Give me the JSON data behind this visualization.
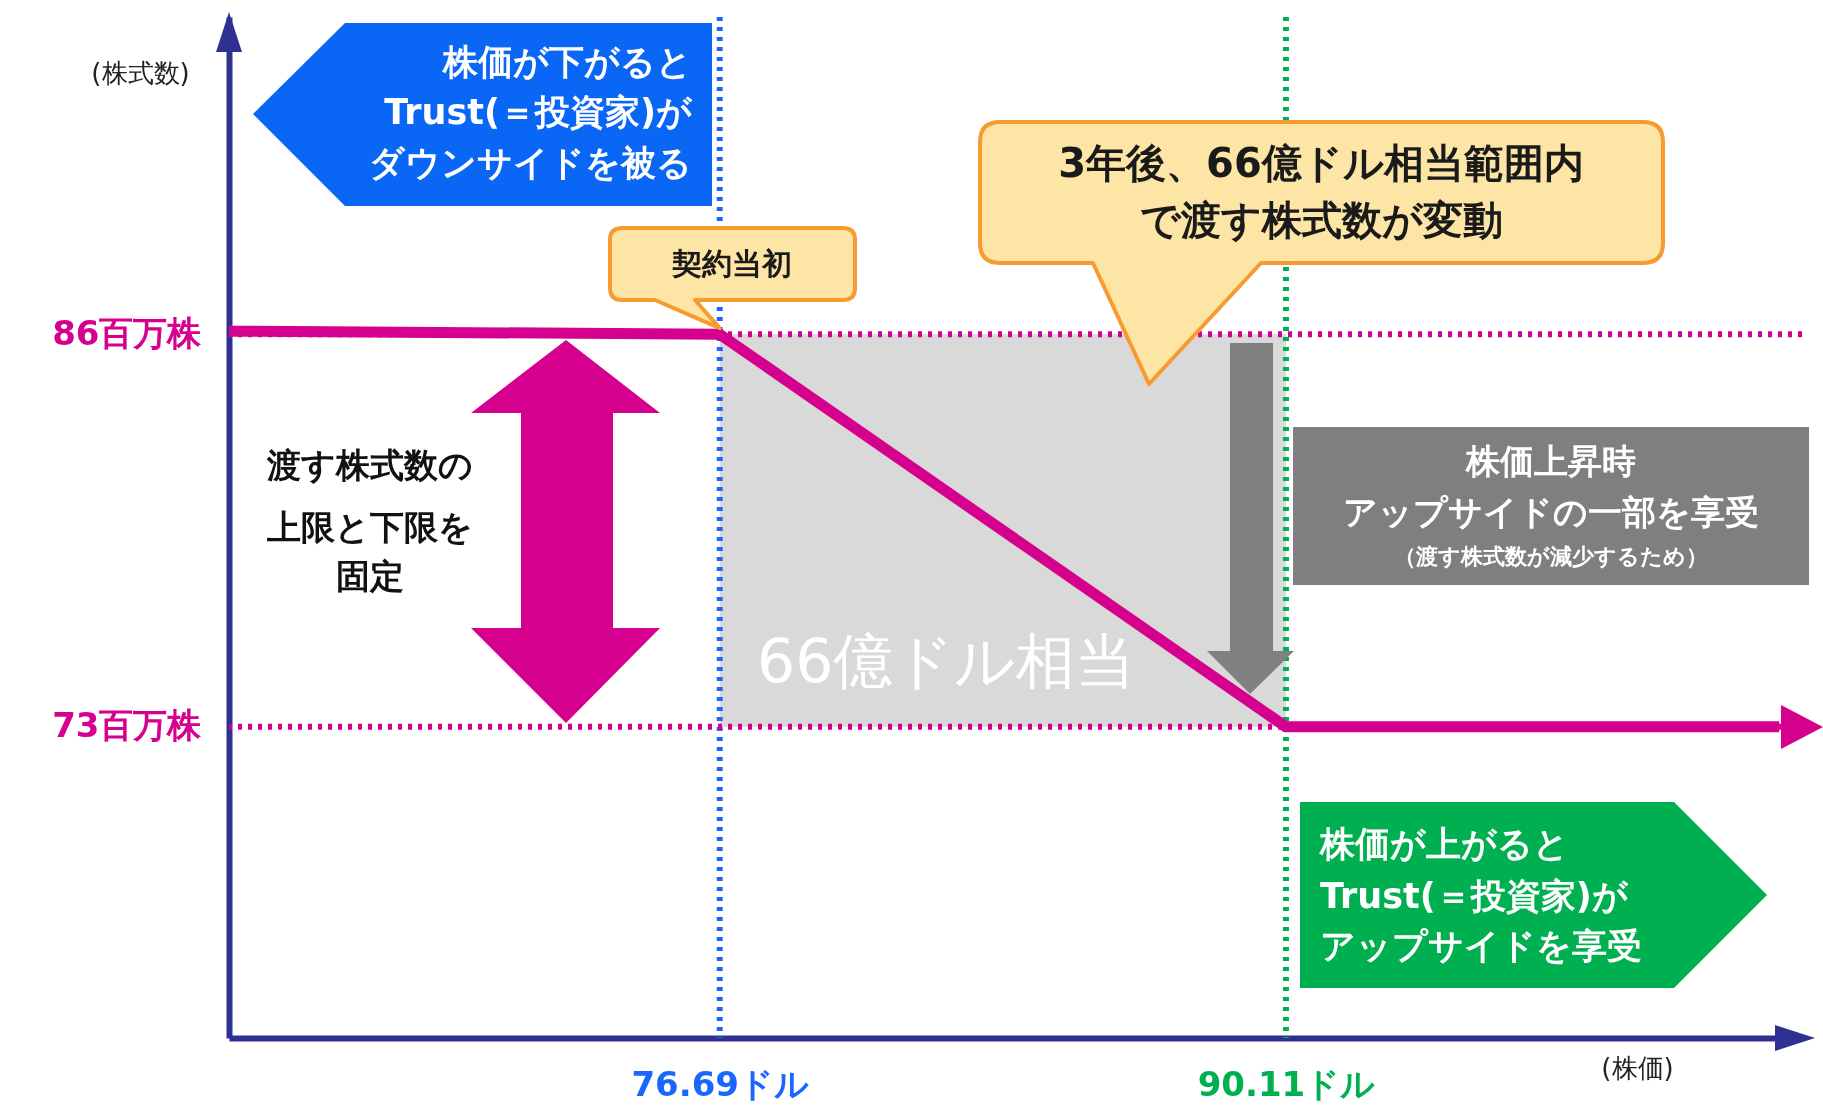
{
  "chart_data": {
    "type": "line",
    "xlabel": "(株価)",
    "ylabel": "(株式数)",
    "x": [
      65.06,
      76.69,
      90.11,
      101.8
    ],
    "series": [
      {
        "color": "#d6008f",
        "values": [
          86.1,
          86,
          73,
          73
        ]
      }
    ],
    "xlim": [
      65.06,
      102.34
    ],
    "ylim": [
      62.7,
      96.5
    ],
    "xticks": [
      {
        "value": 76.69,
        "label": "76.69ドル"
      },
      {
        "value": 90.11,
        "label": "90.11ドル"
      }
    ],
    "yticks": [
      {
        "value": 86,
        "label": "86百万株"
      },
      {
        "value": 73,
        "label": "73百万株"
      }
    ],
    "ref_lines": [
      {
        "axis": "x",
        "value": 76.69,
        "label": null,
        "color": "#1a66ff",
        "line_style": "dotted"
      },
      {
        "axis": "x",
        "value": 90.11,
        "label": null,
        "color": "#00b050",
        "line_style": "dotted"
      },
      {
        "axis": "y",
        "value": 86,
        "label": null,
        "color": "#d6008f",
        "line_style": "dotted"
      },
      {
        "axis": "y",
        "value": 73,
        "label": null,
        "color": "#d6008f",
        "line_style": "dotted"
      }
    ],
    "bands": [
      {
        "axis": "x",
        "from": 76.69,
        "to": 90.11,
        "label": "66億ドル相当",
        "color": "#d9d9d9"
      }
    ],
    "annotations": [
      "株価が下がるとTrust(＝投資家)がダウンサイドを被る",
      {
        "text": "契約当初",
        "x": 76.69,
        "y": 86
      },
      "3年後、66億ドル相当範囲内で渡す株式数が変動",
      "渡す株式数の上限と下限を固定",
      "株価上昇時アップサイドの一部を享受（渡す株式数が減少するため）",
      "株価が上がるとTrust(＝投資家)がアップサイドを享受"
    ]
  }
}
